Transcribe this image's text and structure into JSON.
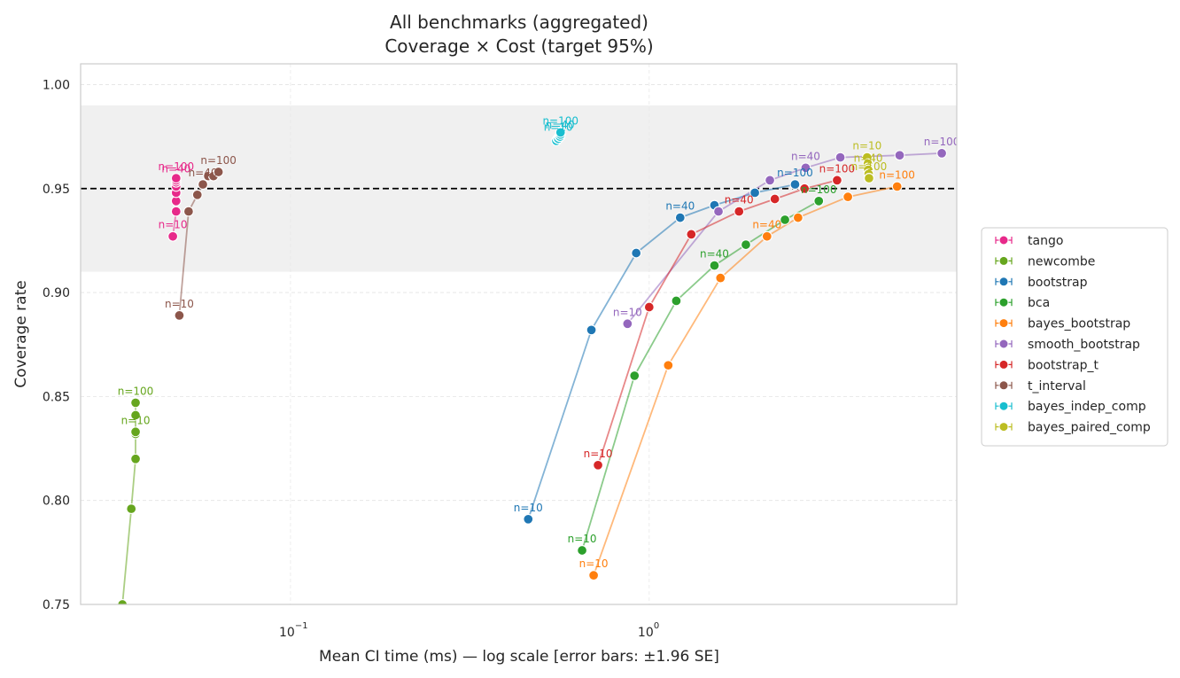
{
  "chart_data": {
    "type": "line",
    "title": "All benchmarks (aggregated)",
    "subtitle": "Coverage × Cost (target 95%)",
    "xlabel": "Mean CI time (ms) — log scale  [error bars: ±1.96 SE]",
    "ylabel": "Coverage rate",
    "x_scale": "log",
    "xlim": [
      0.026,
      7.2
    ],
    "ylim": [
      0.75,
      1.01
    ],
    "x_ticks": [
      {
        "value": 0.1,
        "base": "10",
        "exp": "−1"
      },
      {
        "value": 1,
        "base": "10",
        "exp": "0"
      }
    ],
    "y_ticks": [
      {
        "value": 0.75,
        "label": "0.75"
      },
      {
        "value": 0.8,
        "label": "0.80"
      },
      {
        "value": 0.85,
        "label": "0.85"
      },
      {
        "value": 0.9,
        "label": "0.90"
      },
      {
        "value": 0.95,
        "label": "0.95"
      },
      {
        "value": 1.0,
        "label": "1.00"
      }
    ],
    "target_line": 0.95,
    "target_band": [
      0.91,
      0.99
    ],
    "grid": true,
    "legend_position": "right",
    "series": [
      {
        "name": "tango",
        "color": "#e7298a",
        "x": [
          0.047,
          0.048,
          0.048,
          0.048,
          0.048,
          0.048,
          0.048,
          0.048
        ],
        "y": [
          0.927,
          0.939,
          0.944,
          0.948,
          0.951,
          0.953,
          0.954,
          0.955
        ],
        "labels": [
          {
            "text": "n=10",
            "i": 0
          },
          {
            "text": "n=40",
            "i": 6
          },
          {
            "text": "n=100",
            "i": 7
          }
        ]
      },
      {
        "name": "newcombe",
        "color": "#66a61e",
        "x": [
          0.034,
          0.036,
          0.037,
          0.037,
          0.037,
          0.037,
          0.037
        ],
        "y": [
          0.75,
          0.796,
          0.82,
          0.832,
          0.833,
          0.841,
          0.847
        ],
        "labels": [
          {
            "text": "n=10",
            "i": 4
          },
          {
            "text": "n=100",
            "i": 6
          }
        ]
      },
      {
        "name": "bootstrap",
        "color": "#1f77b4",
        "x": [
          0.46,
          0.69,
          0.92,
          1.22,
          1.52,
          1.97,
          2.55
        ],
        "y": [
          0.791,
          0.882,
          0.919,
          0.936,
          0.942,
          0.948,
          0.952
        ],
        "labels": [
          {
            "text": "n=10",
            "i": 0
          },
          {
            "text": "n=40",
            "i": 3
          },
          {
            "text": "n=100",
            "i": 6
          }
        ]
      },
      {
        "name": "bca",
        "color": "#2ca02c",
        "x": [
          0.65,
          0.91,
          1.19,
          1.52,
          1.86,
          2.39,
          2.97
        ],
        "y": [
          0.776,
          0.86,
          0.896,
          0.913,
          0.923,
          0.935,
          0.944
        ],
        "labels": [
          {
            "text": "n=10",
            "i": 0
          },
          {
            "text": "n=40",
            "i": 3
          },
          {
            "text": "n=100",
            "i": 6
          }
        ]
      },
      {
        "name": "bayes_bootstrap",
        "color": "#ff7f0e",
        "x": [
          0.7,
          1.13,
          1.58,
          2.13,
          2.6,
          3.58,
          4.91
        ],
        "y": [
          0.764,
          0.865,
          0.907,
          0.927,
          0.936,
          0.946,
          0.951
        ],
        "labels": [
          {
            "text": "n=10",
            "i": 0
          },
          {
            "text": "n=40",
            "i": 3
          },
          {
            "text": "n=100",
            "i": 6
          }
        ]
      },
      {
        "name": "smooth_bootstrap",
        "color": "#9467bd",
        "x": [
          0.87,
          1.56,
          2.17,
          2.73,
          3.41,
          4.99,
          6.54
        ],
        "y": [
          0.885,
          0.939,
          0.954,
          0.96,
          0.965,
          0.966,
          0.967
        ],
        "labels": [
          {
            "text": "n=10",
            "i": 0
          },
          {
            "text": "n=40",
            "i": 3
          },
          {
            "text": "n=100",
            "i": 6
          }
        ]
      },
      {
        "name": "bootstrap_t",
        "color": "#d62728",
        "x": [
          0.72,
          1.0,
          1.31,
          1.78,
          2.24,
          2.71,
          3.34
        ],
        "y": [
          0.817,
          0.893,
          0.928,
          0.939,
          0.945,
          0.95,
          0.954
        ],
        "labels": [
          {
            "text": "n=10",
            "i": 0
          },
          {
            "text": "n=40",
            "i": 3
          },
          {
            "text": "n=100",
            "i": 6
          }
        ]
      },
      {
        "name": "t_interval",
        "color": "#8c564b",
        "x": [
          0.049,
          0.052,
          0.055,
          0.057,
          0.059,
          0.061,
          0.063
        ],
        "y": [
          0.889,
          0.939,
          0.947,
          0.952,
          0.956,
          0.956,
          0.958
        ],
        "labels": [
          {
            "text": "n=10",
            "i": 0
          },
          {
            "text": "n=40",
            "i": 3
          },
          {
            "text": "n=100",
            "i": 6
          }
        ]
      },
      {
        "name": "bayes_indep_comp",
        "color": "#17becf",
        "x": [
          0.551,
          0.556,
          0.558,
          0.562,
          0.564,
          0.566,
          0.566
        ],
        "y": [
          0.973,
          0.974,
          0.974,
          0.975,
          0.975,
          0.976,
          0.977
        ],
        "labels": [
          {
            "text": "n=10",
            "i": 2
          },
          {
            "text": "n=40",
            "i": 4
          },
          {
            "text": "n=100",
            "i": 6
          }
        ]
      },
      {
        "name": "bayes_paired_comp",
        "color": "#bcbd22",
        "x": [
          4.05,
          4.07,
          4.08,
          4.08,
          4.09,
          4.1,
          4.1
        ],
        "y": [
          0.965,
          0.962,
          0.96,
          0.959,
          0.957,
          0.955,
          0.955
        ],
        "labels": [
          {
            "text": "n=10",
            "i": 0
          },
          {
            "text": "n=40",
            "i": 3
          },
          {
            "text": "n=100",
            "i": 6
          }
        ]
      }
    ]
  }
}
